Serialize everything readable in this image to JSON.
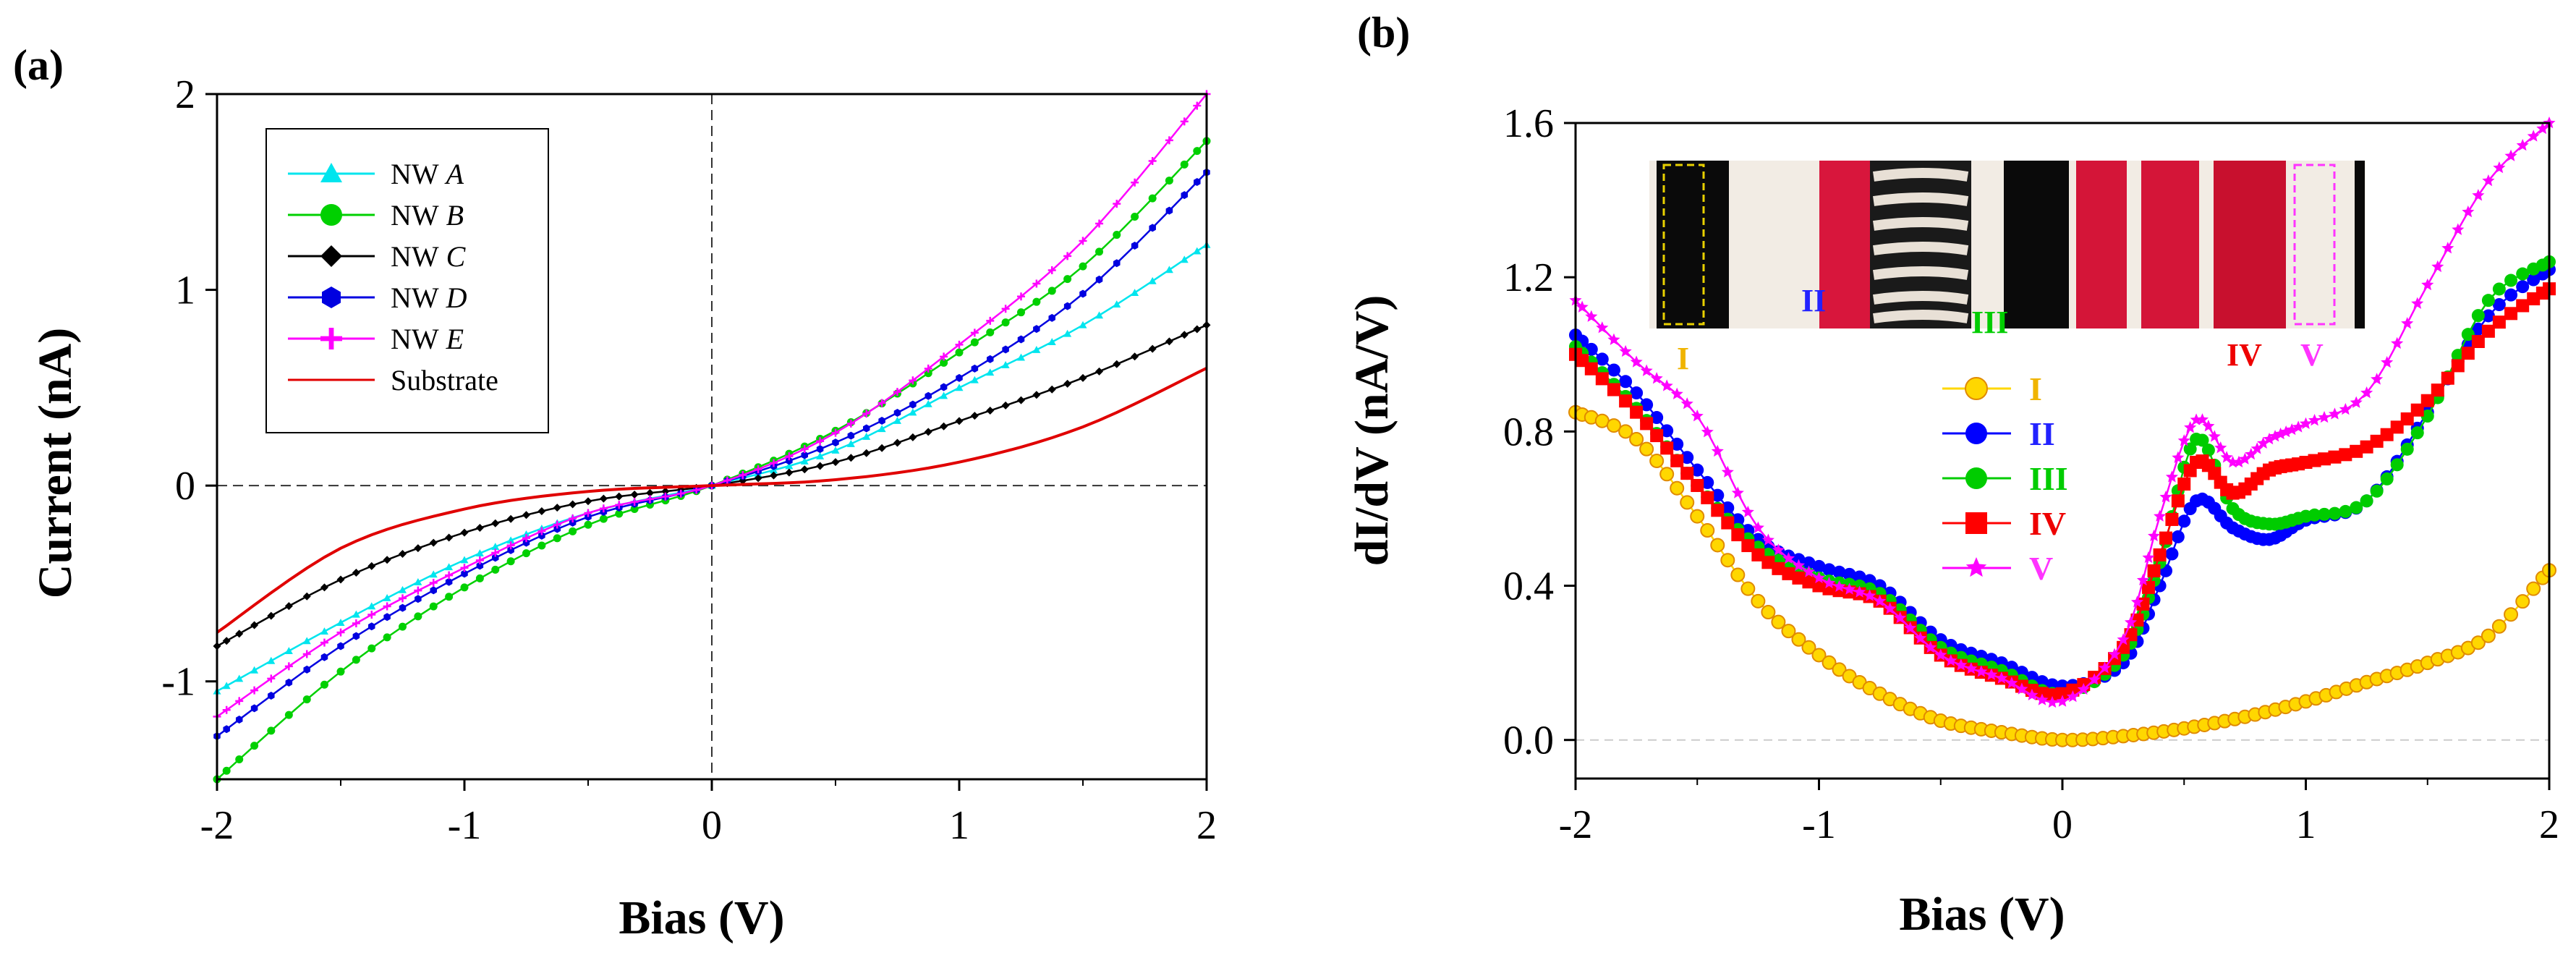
{
  "chart_data": [
    {
      "panel": "(a)",
      "type": "line",
      "xlabel": "Bias (V)",
      "ylabel": "Current (nA)",
      "xlim": [
        -2,
        2
      ],
      "ylim": [
        -1.5,
        2
      ],
      "xticks": [
        "-2",
        "-1",
        "0",
        "1",
        "2"
      ],
      "yticks": [
        "-1",
        "0",
        "1",
        "2"
      ],
      "legend_position": "top-left",
      "series": [
        {
          "name": "NW",
          "italic": "A",
          "color": "#00e5ee",
          "marker": "triangle",
          "x": [
            -2,
            -1.5,
            -1,
            -0.5,
            0,
            0.5,
            1,
            1.5,
            2
          ],
          "y": [
            -1.05,
            -0.7,
            -0.38,
            -0.14,
            0,
            0.18,
            0.5,
            0.82,
            1.23
          ]
        },
        {
          "name": "NW",
          "italic": "B",
          "color": "#00d000",
          "marker": "circle",
          "x": [
            -2,
            -1.5,
            -1,
            -0.5,
            0,
            0.5,
            1,
            1.5,
            2
          ],
          "y": [
            -1.5,
            -0.95,
            -0.52,
            -0.2,
            0,
            0.28,
            0.68,
            1.12,
            1.76
          ]
        },
        {
          "name": "NW",
          "italic": "C",
          "color": "#000000",
          "marker": "diamond",
          "x": [
            -2,
            -1.5,
            -1,
            -0.5,
            0,
            0.5,
            1,
            1.5,
            2
          ],
          "y": [
            -0.82,
            -0.48,
            -0.24,
            -0.08,
            0,
            0.12,
            0.33,
            0.55,
            0.82
          ]
        },
        {
          "name": "NW",
          "italic": "D",
          "color": "#0000e0",
          "marker": "hexagon",
          "x": [
            -2,
            -1.5,
            -1,
            -0.5,
            0,
            0.5,
            1,
            1.5,
            2
          ],
          "y": [
            -1.28,
            -0.82,
            -0.45,
            -0.16,
            0,
            0.22,
            0.55,
            0.98,
            1.6
          ]
        },
        {
          "name": "NW",
          "italic": "E",
          "color": "#ff00ff",
          "marker": "plus",
          "x": [
            -2,
            -1.5,
            -1,
            -0.5,
            0,
            0.5,
            1,
            1.5,
            2
          ],
          "y": [
            -1.18,
            -0.75,
            -0.42,
            -0.14,
            0,
            0.27,
            0.72,
            1.25,
            2.0
          ]
        },
        {
          "name": "Substrate",
          "italic": "",
          "color": "#e00000",
          "marker": "none",
          "x": [
            -2,
            -1.5,
            -1,
            -0.5,
            0,
            0.5,
            1,
            1.5,
            2
          ],
          "y": [
            -0.75,
            -0.32,
            -0.12,
            -0.03,
            0,
            0.03,
            0.12,
            0.3,
            0.6
          ]
        }
      ]
    },
    {
      "panel": "(b)",
      "type": "line",
      "xlabel": "Bias (V)",
      "ylabel": "dI/dV (nA/V)",
      "xlim": [
        -2,
        2
      ],
      "ylim": [
        -0.1,
        1.6
      ],
      "xticks": [
        "-2",
        "-1",
        "0",
        "1",
        "2"
      ],
      "yticks": [
        "0.0",
        "0.4",
        "0.8",
        "1.2",
        "1.6"
      ],
      "legend_position": "center",
      "inset_labels": [
        "I",
        "II",
        "III",
        "IV",
        "V"
      ],
      "series": [
        {
          "name": "I",
          "color": "#ffd700",
          "label_color": "#f0b400",
          "marker": "circle-open",
          "x": [
            -2,
            -1.75,
            -1.5,
            -1.25,
            -1,
            -0.75,
            -0.5,
            -0.25,
            0,
            0.25,
            0.5,
            0.75,
            1,
            1.25,
            1.5,
            1.75,
            2
          ],
          "y": [
            0.85,
            0.78,
            0.58,
            0.36,
            0.22,
            0.12,
            0.05,
            0.02,
            0.0,
            0.01,
            0.03,
            0.06,
            0.1,
            0.15,
            0.2,
            0.27,
            0.44
          ]
        },
        {
          "name": "II",
          "color": "#0000ff",
          "label_color": "#2222ff",
          "marker": "circle",
          "x": [
            -2,
            -1.75,
            -1.5,
            -1.25,
            -1,
            -0.75,
            -0.5,
            -0.25,
            0,
            0.25,
            0.4,
            0.55,
            0.7,
            0.85,
            1,
            1.25,
            1.5,
            1.75,
            2
          ],
          "y": [
            1.05,
            0.9,
            0.7,
            0.52,
            0.45,
            0.4,
            0.26,
            0.2,
            0.14,
            0.2,
            0.4,
            0.62,
            0.55,
            0.52,
            0.57,
            0.62,
            0.85,
            1.1,
            1.22
          ]
        },
        {
          "name": "III",
          "color": "#00cc00",
          "label_color": "#00cc00",
          "marker": "circle",
          "x": [
            -2,
            -1.75,
            -1.5,
            -1.25,
            -1,
            -0.75,
            -0.5,
            -0.25,
            0,
            0.25,
            0.4,
            0.55,
            0.7,
            0.85,
            1,
            1.25,
            1.5,
            1.75,
            2
          ],
          "y": [
            1.02,
            0.86,
            0.66,
            0.5,
            0.42,
            0.38,
            0.24,
            0.18,
            0.12,
            0.22,
            0.46,
            0.78,
            0.6,
            0.56,
            0.58,
            0.62,
            0.84,
            1.14,
            1.24
          ]
        },
        {
          "name": "IV",
          "color": "#ff0000",
          "label_color": "#ee0000",
          "marker": "square",
          "x": [
            -2,
            -1.75,
            -1.5,
            -1.25,
            -1,
            -0.75,
            -0.5,
            -0.25,
            0,
            0.25,
            0.4,
            0.55,
            0.7,
            0.85,
            1,
            1.25,
            1.5,
            1.75,
            2
          ],
          "y": [
            1.0,
            0.85,
            0.66,
            0.48,
            0.4,
            0.36,
            0.22,
            0.16,
            0.12,
            0.24,
            0.48,
            0.72,
            0.64,
            0.7,
            0.72,
            0.76,
            0.88,
            1.06,
            1.17
          ]
        },
        {
          "name": "V",
          "color": "#ff00ff",
          "label_color": "#ff33ff",
          "marker": "star",
          "x": [
            -2,
            -1.75,
            -1.5,
            -1.25,
            -1,
            -0.75,
            -0.5,
            -0.25,
            0,
            0.25,
            0.4,
            0.55,
            0.7,
            0.85,
            1,
            1.25,
            1.5,
            1.75,
            2
          ],
          "y": [
            1.14,
            0.98,
            0.84,
            0.55,
            0.42,
            0.36,
            0.22,
            0.16,
            0.1,
            0.26,
            0.58,
            0.83,
            0.72,
            0.78,
            0.82,
            0.9,
            1.18,
            1.45,
            1.6
          ]
        }
      ]
    }
  ]
}
